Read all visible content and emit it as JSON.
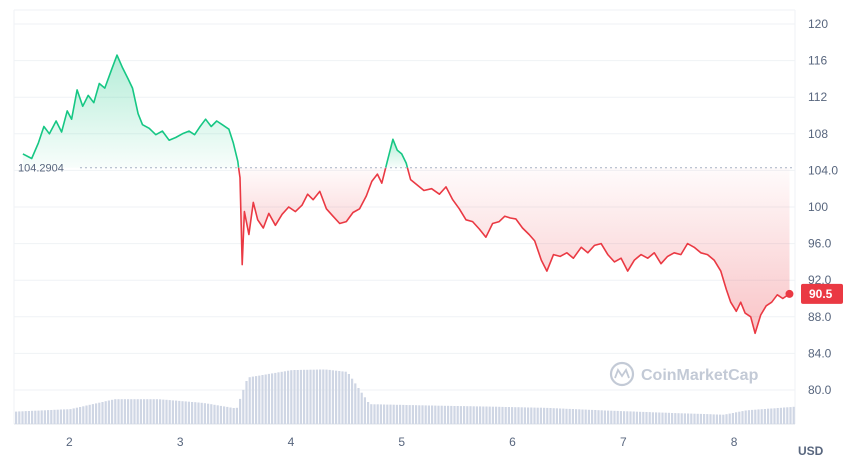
{
  "chart_data": {
    "type": "line",
    "currency": "USD",
    "baseline": 104.2904,
    "baseline_label": "104.2904",
    "current_price": 90.5,
    "current_price_label": "90.5",
    "watermark": "CoinMarketCap",
    "ylim": [
      78,
      122
    ],
    "xlim": [
      1.5,
      8.55
    ],
    "yticks": [
      {
        "v": 120,
        "label": "120"
      },
      {
        "v": 116,
        "label": "116"
      },
      {
        "v": 112,
        "label": "112"
      },
      {
        "v": 108,
        "label": "108"
      },
      {
        "v": 104,
        "label": "104.0"
      },
      {
        "v": 100,
        "label": "100"
      },
      {
        "v": 96,
        "label": "96.0"
      },
      {
        "v": 92,
        "label": "92.0"
      },
      {
        "v": 88,
        "label": "88.0"
      },
      {
        "v": 84,
        "label": "84.0"
      },
      {
        "v": 80,
        "label": "80.0"
      }
    ],
    "xticks": [
      {
        "v": 2,
        "label": "2"
      },
      {
        "v": 3,
        "label": "3"
      },
      {
        "v": 4,
        "label": "4"
      },
      {
        "v": 5,
        "label": "5"
      },
      {
        "v": 6,
        "label": "6"
      },
      {
        "v": 7,
        "label": "7"
      },
      {
        "v": 8,
        "label": "8"
      }
    ],
    "colors": {
      "up": "#16c784",
      "down": "#ea3943",
      "volume": "#cfd6e4",
      "grid": "#eff2f5"
    },
    "series": [
      {
        "values": [
          [
            1.58,
            105.8
          ],
          [
            1.66,
            105.3
          ],
          [
            1.72,
            107.0
          ],
          [
            1.77,
            108.8
          ],
          [
            1.82,
            108.0
          ],
          [
            1.88,
            109.4
          ],
          [
            1.93,
            108.2
          ],
          [
            1.98,
            110.5
          ],
          [
            2.02,
            109.6
          ],
          [
            2.07,
            112.8
          ],
          [
            2.12,
            111.0
          ],
          [
            2.17,
            112.2
          ],
          [
            2.22,
            111.4
          ],
          [
            2.27,
            113.5
          ],
          [
            2.32,
            113.0
          ],
          [
            2.38,
            115.0
          ],
          [
            2.43,
            116.6
          ],
          [
            2.48,
            115.2
          ],
          [
            2.53,
            114.0
          ],
          [
            2.57,
            113.0
          ],
          [
            2.62,
            110.2
          ],
          [
            2.66,
            109.0
          ],
          [
            2.72,
            108.6
          ],
          [
            2.78,
            107.9
          ],
          [
            2.84,
            108.3
          ],
          [
            2.9,
            107.3
          ],
          [
            2.96,
            107.6
          ],
          [
            3.02,
            108.0
          ],
          [
            3.08,
            108.3
          ],
          [
            3.13,
            107.9
          ],
          [
            3.18,
            108.8
          ],
          [
            3.23,
            109.6
          ],
          [
            3.28,
            108.8
          ],
          [
            3.33,
            109.4
          ],
          [
            3.38,
            109.0
          ],
          [
            3.44,
            108.5
          ],
          [
            3.48,
            107.0
          ],
          [
            3.52,
            105.0
          ],
          [
            3.54,
            103.2
          ],
          [
            3.56,
            93.7
          ],
          [
            3.58,
            99.5
          ],
          [
            3.62,
            97.0
          ],
          [
            3.66,
            100.5
          ],
          [
            3.7,
            98.6
          ],
          [
            3.75,
            97.7
          ],
          [
            3.8,
            99.3
          ],
          [
            3.86,
            98.0
          ],
          [
            3.92,
            99.2
          ],
          [
            3.98,
            100.0
          ],
          [
            4.04,
            99.5
          ],
          [
            4.1,
            100.2
          ],
          [
            4.15,
            101.4
          ],
          [
            4.2,
            100.8
          ],
          [
            4.26,
            101.7
          ],
          [
            4.32,
            99.8
          ],
          [
            4.38,
            99.0
          ],
          [
            4.44,
            98.2
          ],
          [
            4.5,
            98.4
          ],
          [
            4.56,
            99.4
          ],
          [
            4.62,
            99.8
          ],
          [
            4.68,
            101.2
          ],
          [
            4.73,
            102.8
          ],
          [
            4.78,
            103.6
          ],
          [
            4.82,
            102.6
          ],
          [
            4.87,
            105.0
          ],
          [
            4.92,
            107.4
          ],
          [
            4.96,
            106.2
          ],
          [
            5.0,
            105.8
          ],
          [
            5.04,
            104.8
          ],
          [
            5.08,
            103.0
          ],
          [
            5.14,
            102.4
          ],
          [
            5.2,
            101.8
          ],
          [
            5.27,
            102.0
          ],
          [
            5.34,
            101.4
          ],
          [
            5.4,
            102.2
          ],
          [
            5.46,
            100.8
          ],
          [
            5.52,
            99.8
          ],
          [
            5.58,
            98.6
          ],
          [
            5.64,
            98.4
          ],
          [
            5.7,
            97.6
          ],
          [
            5.76,
            96.7
          ],
          [
            5.82,
            98.2
          ],
          [
            5.88,
            98.4
          ],
          [
            5.93,
            99.0
          ],
          [
            5.98,
            98.8
          ],
          [
            6.03,
            98.7
          ],
          [
            6.09,
            97.7
          ],
          [
            6.15,
            97.0
          ],
          [
            6.2,
            96.3
          ],
          [
            6.26,
            94.2
          ],
          [
            6.31,
            93.0
          ],
          [
            6.37,
            94.8
          ],
          [
            6.43,
            94.6
          ],
          [
            6.49,
            95.0
          ],
          [
            6.55,
            94.4
          ],
          [
            6.62,
            95.6
          ],
          [
            6.68,
            95.0
          ],
          [
            6.74,
            95.8
          ],
          [
            6.8,
            96.0
          ],
          [
            6.86,
            94.8
          ],
          [
            6.92,
            94.0
          ],
          [
            6.98,
            94.4
          ],
          [
            7.04,
            93.0
          ],
          [
            7.1,
            94.2
          ],
          [
            7.16,
            94.8
          ],
          [
            7.22,
            94.4
          ],
          [
            7.28,
            95.0
          ],
          [
            7.34,
            93.8
          ],
          [
            7.4,
            94.6
          ],
          [
            7.46,
            95.0
          ],
          [
            7.52,
            94.8
          ],
          [
            7.58,
            96.0
          ],
          [
            7.64,
            95.6
          ],
          [
            7.7,
            95.0
          ],
          [
            7.76,
            94.8
          ],
          [
            7.82,
            94.2
          ],
          [
            7.88,
            93.0
          ],
          [
            7.93,
            91.0
          ],
          [
            7.97,
            89.6
          ],
          [
            8.02,
            88.6
          ],
          [
            8.06,
            89.6
          ],
          [
            8.1,
            88.4
          ],
          [
            8.15,
            88.0
          ],
          [
            8.19,
            86.2
          ],
          [
            8.24,
            88.2
          ],
          [
            8.29,
            89.2
          ],
          [
            8.34,
            89.6
          ],
          [
            8.39,
            90.4
          ],
          [
            8.44,
            90.0
          ],
          [
            8.5,
            90.5
          ]
        ]
      }
    ],
    "volume_profile": [
      [
        1.5,
        0.2
      ],
      [
        2.0,
        0.24
      ],
      [
        2.4,
        0.4
      ],
      [
        2.8,
        0.4
      ],
      [
        3.2,
        0.34
      ],
      [
        3.5,
        0.25
      ],
      [
        3.6,
        0.75
      ],
      [
        4.0,
        0.87
      ],
      [
        4.3,
        0.88
      ],
      [
        4.5,
        0.84
      ],
      [
        4.7,
        0.32
      ],
      [
        5.2,
        0.3
      ],
      [
        5.8,
        0.28
      ],
      [
        6.3,
        0.26
      ],
      [
        6.8,
        0.22
      ],
      [
        7.4,
        0.18
      ],
      [
        7.9,
        0.15
      ],
      [
        8.1,
        0.22
      ],
      [
        8.55,
        0.28
      ]
    ]
  }
}
